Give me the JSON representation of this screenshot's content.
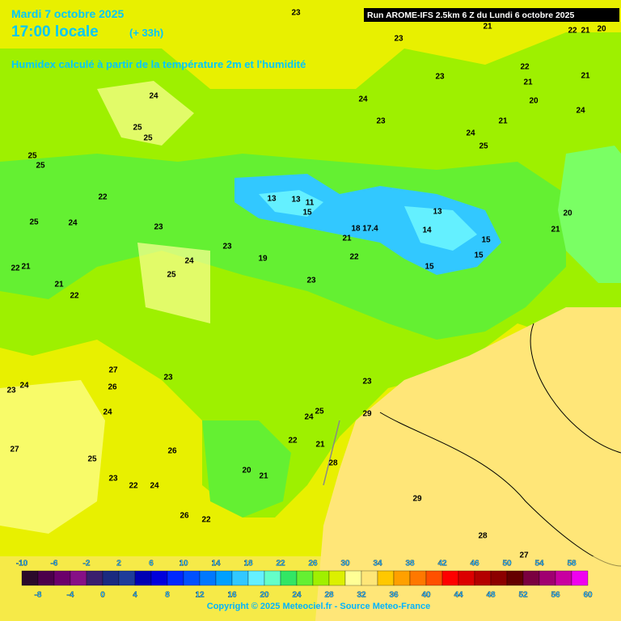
{
  "header": {
    "date": "Mardi 7 octobre 2025",
    "time": "17:00 locale",
    "offset": "(+ 33h)",
    "subtitle": "Humidex calculé à partir de la température 2m et l'humidité",
    "run": "Run AROME-IFS 2.5km 6 Z du Lundi 6 octobre 2025"
  },
  "map_labels": [
    23,
    21,
    22,
    21,
    20,
    23,
    22,
    21,
    23,
    21,
    24,
    24,
    20,
    23,
    24,
    21,
    25,
    25,
    24,
    25,
    25,
    25,
    22,
    13,
    13,
    11,
    15,
    13,
    20,
    25,
    24,
    23,
    18,
    17.4,
    14,
    21,
    21,
    23,
    15,
    19,
    22,
    15,
    24,
    15,
    22,
    21,
    25,
    23,
    21,
    22,
    27,
    23,
    23,
    23,
    24,
    26,
    24,
    24,
    25,
    29,
    22,
    21,
    26,
    27,
    25,
    28,
    20,
    21,
    23,
    22,
    24,
    29,
    26,
    22,
    28,
    27
  ],
  "colorbar": {
    "colors": [
      "#2b0a2b",
      "#4b004b",
      "#6b006b",
      "#861086",
      "#3a1e6e",
      "#1a2a80",
      "#1e3c9a",
      "#0000b4",
      "#0000dc",
      "#0028ff",
      "#0050ff",
      "#0078ff",
      "#00a0ff",
      "#32c8ff",
      "#64f0ff",
      "#64ffc8",
      "#32e664",
      "#64f032",
      "#a0f000",
      "#dcf000",
      "#ffff96",
      "#ffe678",
      "#ffc800",
      "#ffa000",
      "#ff7800",
      "#ff5000",
      "#ff0000",
      "#dc0000",
      "#b40000",
      "#8c0000",
      "#640000",
      "#7a0040",
      "#a00070",
      "#c800a0",
      "#f000f0"
    ],
    "range": [
      -10,
      60
    ],
    "ticks_top": [
      -10,
      -6,
      -2,
      2,
      6,
      10,
      14,
      18,
      22,
      26,
      30,
      34,
      38,
      42,
      46,
      50,
      54,
      58
    ],
    "ticks_bottom": [
      -8,
      -4,
      0,
      4,
      8,
      12,
      16,
      20,
      24,
      28,
      32,
      36,
      40,
      44,
      48,
      52,
      56,
      60
    ]
  },
  "footer": {
    "copyright": "Copyright © 2025 Meteociel.fr - Source Meteo-France"
  }
}
